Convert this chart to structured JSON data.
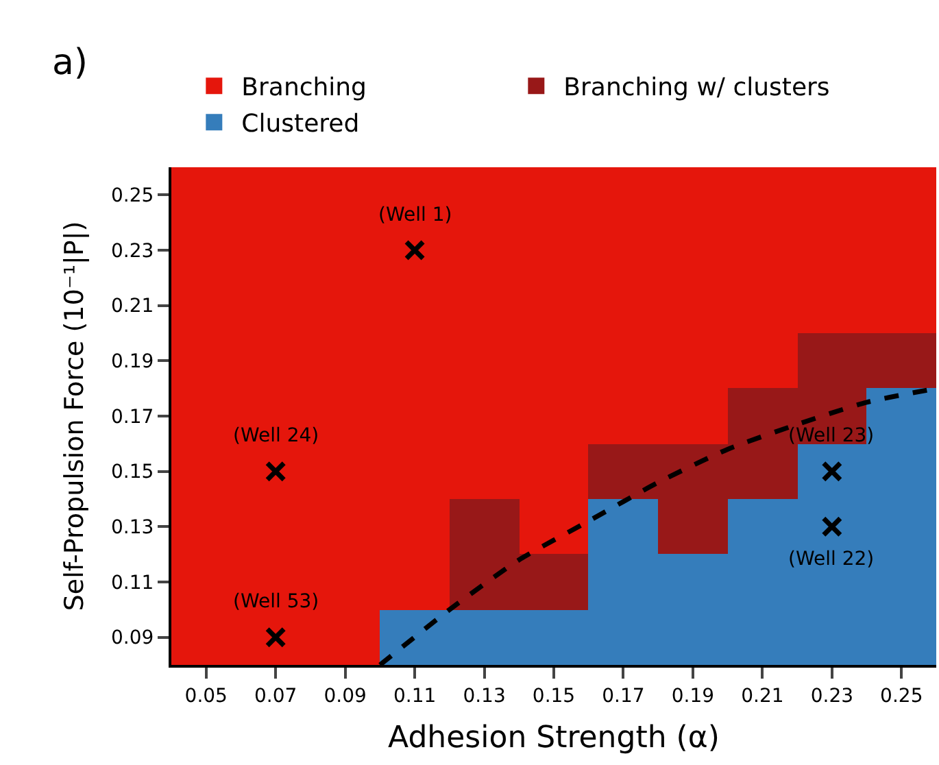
{
  "chart_data": {
    "type": "bar",
    "xlabel": "Adhesion Strength (α)",
    "ylabel": "Self-Propulsion Force (10⁻¹|P|)",
    "annotations": [
      "a)",
      {
        "text": "(Well 1)",
        "x": 0.11,
        "y": 0.23
      },
      {
        "text": "(Well 24)",
        "x": 0.07,
        "y": 0.15
      },
      {
        "text": "(Well 53)",
        "x": 0.07,
        "y": 0.09
      },
      {
        "text": "(Well 23)",
        "x": 0.23,
        "y": 0.15
      },
      {
        "text": "(Well 22)",
        "x": 0.23,
        "y": 0.13
      }
    ],
    "x": [
      0.05,
      0.07,
      0.09,
      0.11,
      0.13,
      0.15,
      0.17,
      0.19,
      0.21,
      0.23,
      0.25
    ],
    "xlim": [
      0.04,
      0.26
    ],
    "ylim": [
      0.08,
      0.26
    ],
    "xticks": [
      0.05,
      0.07,
      0.09,
      0.11,
      0.13,
      0.15,
      0.17,
      0.19,
      0.21,
      0.23,
      0.25
    ],
    "yticks": [
      0.09,
      0.11,
      0.13,
      0.15,
      0.17,
      0.19,
      0.21,
      0.23,
      0.25
    ],
    "series": [
      {
        "name": "Branching",
        "color": "#e5160c",
        "base": [
          0.08,
          0.08,
          0.08,
          0.1,
          0.14,
          0.12,
          0.16,
          0.16,
          0.18,
          0.2,
          0.2
        ],
        "values": [
          0.18,
          0.18,
          0.18,
          0.16,
          0.12,
          0.14,
          0.1,
          0.1,
          0.08,
          0.06,
          0.06
        ]
      },
      {
        "name": "Branching w/ clusters",
        "color": "#981818",
        "base": [
          null,
          null,
          null,
          null,
          0.1,
          0.1,
          0.14,
          0.12,
          0.14,
          0.16,
          0.18
        ],
        "values": [
          null,
          null,
          null,
          null,
          0.04,
          0.02,
          0.02,
          0.04,
          0.04,
          0.04,
          0.02
        ]
      },
      {
        "name": "Clustered",
        "color": "#357dbb",
        "base": [
          null,
          null,
          null,
          0.08,
          0.08,
          0.08,
          0.08,
          0.08,
          0.08,
          0.08,
          0.08
        ],
        "values": [
          null,
          null,
          null,
          0.02,
          0.02,
          0.02,
          0.06,
          0.04,
          0.06,
          0.08,
          0.1
        ]
      },
      {
        "type": "line",
        "line_style": "dashed",
        "color": "#000000",
        "x": [
          0.1,
          0.12,
          0.14,
          0.16,
          0.18,
          0.2,
          0.22,
          0.24,
          0.26
        ],
        "values": [
          0.08,
          0.1,
          0.118,
          0.132,
          0.146,
          0.158,
          0.167,
          0.175,
          0.18
        ]
      },
      {
        "type": "scatter",
        "marker": "cross",
        "color": "#000000",
        "x": [
          0.11,
          0.07,
          0.07,
          0.23,
          0.23
        ],
        "values": [
          0.23,
          0.15,
          0.09,
          0.15,
          0.13
        ]
      }
    ],
    "legend": "top"
  }
}
